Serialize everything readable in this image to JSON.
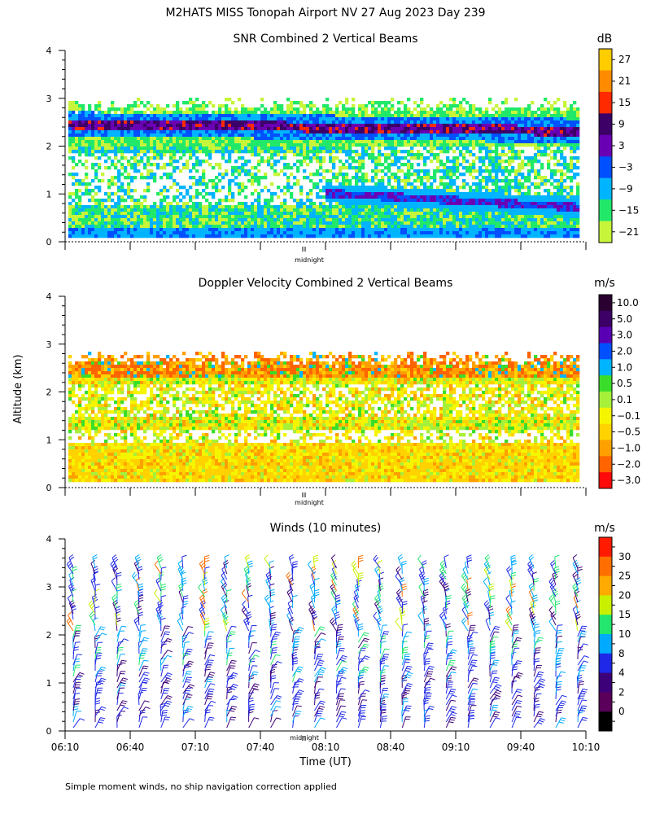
{
  "page": {
    "title": "M2HATS MISS Tonopah Airport NV  27 Aug 2023 Day 239",
    "shared_ylabel": "Altitude (km)",
    "footer": "Simple moment winds, no ship navigation correction applied",
    "midnight_label": "midnight"
  },
  "chart_data": [
    {
      "type": "heatmap",
      "title": "SNR Combined 2 Vertical Beams",
      "unit": "dB",
      "ylim": [
        0,
        4
      ],
      "yticks": [
        "0",
        "1",
        "2",
        "3",
        "4"
      ],
      "xlim": [
        "06:10",
        "10:10"
      ],
      "colorbar": {
        "labels": [
          "27",
          "21",
          "15",
          "9",
          "3",
          "−3",
          "−9",
          "−15",
          "−21"
        ],
        "colors": [
          "#ffcc00",
          "#ff8c00",
          "#ff2a00",
          "#3c0066",
          "#6a00b4",
          "#0050ff",
          "#00b4ff",
          "#22e86a",
          "#c6f53a"
        ]
      },
      "features": [
        {
          "name": "strong-return-band",
          "altitude_km": [
            2.3,
            2.7
          ]
        },
        {
          "name": "descending-layer",
          "altitude_km": [
            0.8,
            1.4
          ]
        }
      ]
    },
    {
      "type": "heatmap",
      "title": "Doppler Velocity Combined 2 Vertical Beams",
      "unit": "m/s",
      "ylim": [
        0,
        4
      ],
      "yticks": [
        "0",
        "1",
        "2",
        "3",
        "4"
      ],
      "xlim": [
        "06:10",
        "10:10"
      ],
      "colorbar": {
        "labels": [
          "10.0",
          "5.0",
          "3.0",
          "2.0",
          "1.0",
          "0.5",
          "0.1",
          "−0.1",
          "−0.5",
          "−1.0",
          "−2.0",
          "−3.0"
        ],
        "colors": [
          "#2a0030",
          "#3c0066",
          "#5a00b4",
          "#0050ff",
          "#00b4ff",
          "#3ade2a",
          "#a6f03a",
          "#f5f500",
          "#ffd200",
          "#ffa000",
          "#ff6400",
          "#ff0a0a"
        ]
      }
    },
    {
      "type": "wind-barbs",
      "title": "Winds (10 minutes)",
      "unit": "m/s",
      "ylim": [
        0,
        4
      ],
      "yticks": [
        "0",
        "1",
        "2",
        "3",
        "4"
      ],
      "xlabel": "Time (UT)",
      "xtick_labels": [
        "06:10",
        "06:40",
        "07:10",
        "07:40",
        "08:10",
        "08:40",
        "09:10",
        "09:40",
        "10:10"
      ],
      "colorbar": {
        "labels": [
          "30",
          "25",
          "20",
          "15",
          "10",
          "8",
          "4",
          "2",
          "0"
        ],
        "colors": [
          "#ff1a00",
          "#ff6e00",
          "#ffaa00",
          "#c8f000",
          "#23e66e",
          "#00aaff",
          "#1e28e6",
          "#3c0078",
          "#5a005a",
          "#000000"
        ]
      },
      "profiles": 24
    }
  ]
}
